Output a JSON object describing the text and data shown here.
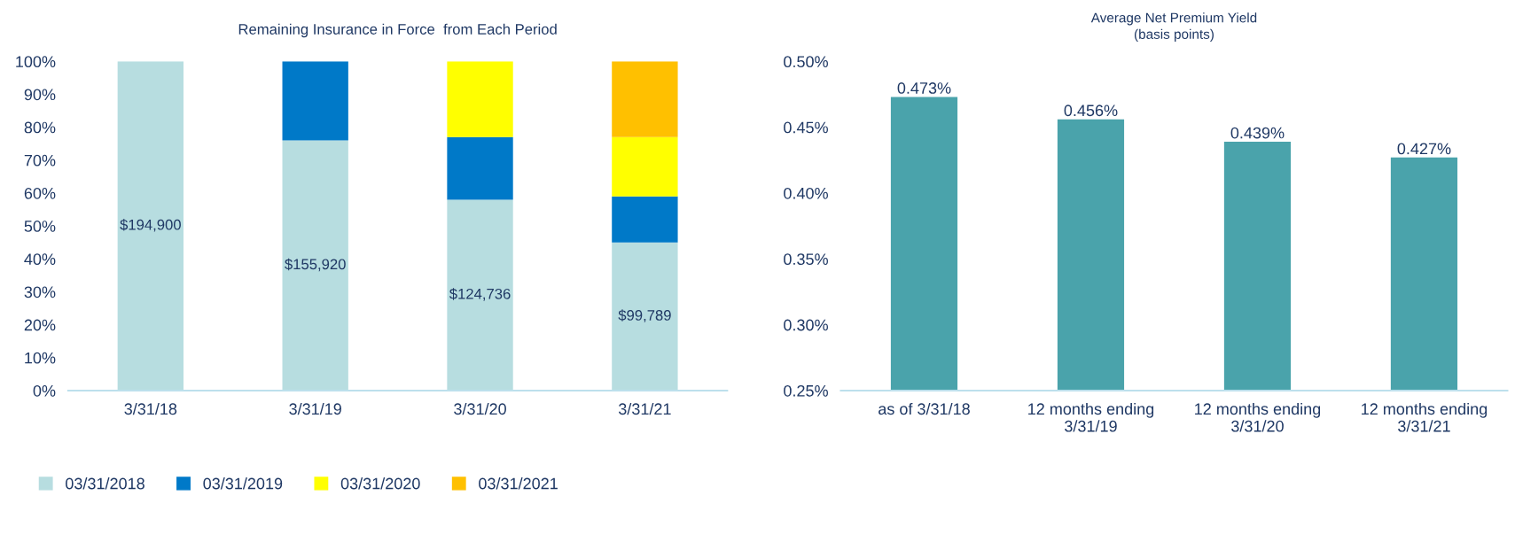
{
  "chart_data": [
    {
      "type": "bar",
      "title": "Remaining Insurance in Force  from Each Period",
      "stacked": true,
      "legend": "bottom",
      "grid": false,
      "categories": [
        "3/31/18",
        "3/31/19",
        "3/31/20",
        "3/31/21"
      ],
      "series": [
        {
          "name": "03/31/2018",
          "color": "#b7dde0",
          "values": [
            100,
            76,
            58,
            45
          ]
        },
        {
          "name": "03/31/2019",
          "color": "#0079c8",
          "values": [
            null,
            24,
            19,
            14
          ]
        },
        {
          "name": "03/31/2020",
          "color": "#ffff00",
          "values": [
            null,
            null,
            23,
            18
          ]
        },
        {
          "name": "03/31/2021",
          "color": "#ffc000",
          "values": [
            null,
            null,
            null,
            23
          ]
        }
      ],
      "annotations": [
        "$194,900",
        "$155,920",
        "$124,736",
        "$99,789"
      ],
      "ylim": [
        0,
        100
      ],
      "yticks": [
        {
          "value": 0,
          "label": "0%"
        },
        {
          "value": 10,
          "label": "10%"
        },
        {
          "value": 20,
          "label": "20%"
        },
        {
          "value": 30,
          "label": "30%"
        },
        {
          "value": 40,
          "label": "40%"
        },
        {
          "value": 50,
          "label": "50%"
        },
        {
          "value": 60,
          "label": "60%"
        },
        {
          "value": 70,
          "label": "70%"
        },
        {
          "value": 80,
          "label": "80%"
        },
        {
          "value": 90,
          "label": "90%"
        },
        {
          "value": 100,
          "label": "100%"
        }
      ]
    },
    {
      "type": "bar",
      "title": "Average Net Premium Yield",
      "subtitle": "(basis points)",
      "grid": false,
      "categories": [
        "as of 3/31/18",
        "12 months ending\n3/31/19",
        "12 months ending\n3/31/20",
        "12 months ending\n3/31/21"
      ],
      "series": [
        {
          "color": "#4aa3ab",
          "values": [
            0.473,
            0.456,
            0.439,
            0.427
          ],
          "value_labels": [
            "0.473%",
            "0.456%",
            "0.439%",
            "0.427%"
          ]
        }
      ],
      "ylim": [
        0.25,
        0.5
      ],
      "yticks": [
        {
          "value": 0.25,
          "label": "0.25%"
        },
        {
          "value": 0.3,
          "label": "0.30%"
        },
        {
          "value": 0.35,
          "label": "0.35%"
        },
        {
          "value": 0.4,
          "label": "0.40%"
        },
        {
          "value": 0.45,
          "label": "0.45%"
        },
        {
          "value": 0.5,
          "label": "0.50%"
        }
      ]
    }
  ]
}
